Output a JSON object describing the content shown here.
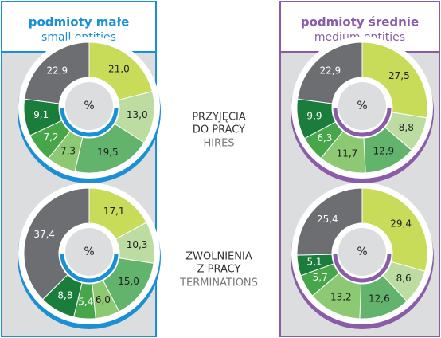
{
  "panels": [
    {
      "title": "podmioty małe",
      "subtitle": "small entities"
    },
    {
      "title": "podmioty średnie",
      "subtitle": "medium entities"
    }
  ],
  "row_labels": [
    {
      "lines": [
        "PRZYJĘCIA",
        "DO PRACY"
      ],
      "english": "HIRES"
    },
    {
      "lines": [
        "ZWOLNIENIA",
        "Z PRACY"
      ],
      "english": "TERMINATIONS"
    }
  ],
  "chart_data": [
    {
      "type": "donut",
      "center_label": "%",
      "values": [
        21.0,
        13.0,
        19.5,
        7.3,
        7.2,
        9.1,
        22.9
      ],
      "value_labels": [
        "21,0",
        "13,0",
        "19,5",
        "7,3",
        "7,2",
        "9,1",
        "22,9"
      ],
      "colors": [
        "#c8dc5a",
        "#bcdca2",
        "#62b36c",
        "#8dc873",
        "#47a649",
        "#1b7d3c",
        "#6d6e71"
      ],
      "accent": "#1a8fd4"
    },
    {
      "type": "donut",
      "center_label": "%",
      "values": [
        27.5,
        8.8,
        12.9,
        11.7,
        6.3,
        9.9,
        22.9
      ],
      "value_labels": [
        "27,5",
        "8,8",
        "12,9",
        "11,7",
        "6,3",
        "9,9",
        "22,9"
      ],
      "colors": [
        "#c8dc5a",
        "#bcdca2",
        "#62b36c",
        "#8dc873",
        "#47a649",
        "#1b7d3c",
        "#6d6e71"
      ],
      "accent": "#8a5ca8"
    },
    {
      "type": "donut",
      "center_label": "%",
      "values": [
        17.1,
        10.3,
        15.0,
        6.0,
        5.4,
        8.8,
        37.4
      ],
      "value_labels": [
        "17,1",
        "10,3",
        "15,0",
        "6,0",
        "5,4",
        "8,8",
        "37,4"
      ],
      "colors": [
        "#c8dc5a",
        "#bcdca2",
        "#62b36c",
        "#8dc873",
        "#47a649",
        "#1b7d3c",
        "#6d6e71"
      ],
      "accent": "#1a8fd4"
    },
    {
      "type": "donut",
      "center_label": "%",
      "values": [
        29.4,
        8.6,
        12.6,
        13.2,
        5.7,
        5.1,
        25.4
      ],
      "value_labels": [
        "29,4",
        "8,6",
        "12,6",
        "13,2",
        "5,7",
        "5,1",
        "25,4"
      ],
      "colors": [
        "#c8dc5a",
        "#bcdca2",
        "#62b36c",
        "#8dc873",
        "#47a649",
        "#1b7d3c",
        "#6d6e71"
      ],
      "accent": "#8a5ca8"
    }
  ]
}
